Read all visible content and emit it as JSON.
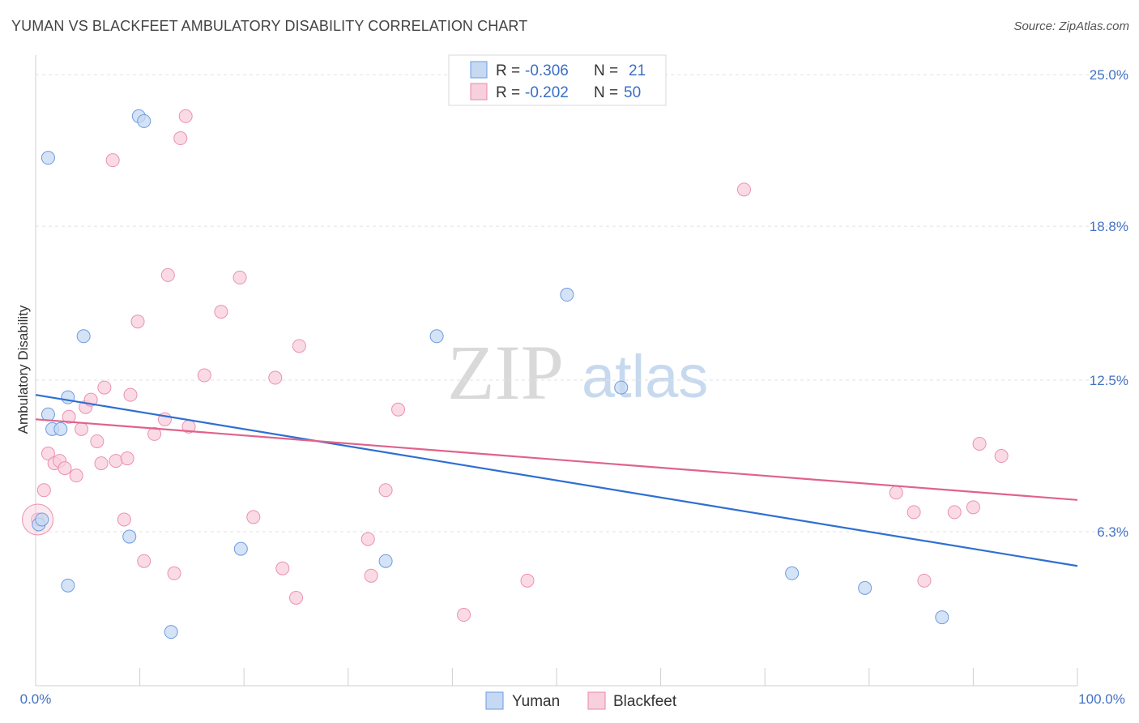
{
  "title": "YUMAN VS BLACKFEET AMBULATORY DISABILITY CORRELATION CHART",
  "source": "Source: ZipAtlas.com",
  "watermark": {
    "zip": "ZIP",
    "atlas": "atlas"
  },
  "colors": {
    "yuman": "#4f86d9",
    "yuman_fill": "#c5d9f3",
    "blackfeet": "#e46b93",
    "blackfeet_fill": "#f8cfdc",
    "tick": "#4472c4",
    "grid": "#e2e2e2"
  },
  "legend": {
    "rows": [
      {
        "r_label": "R = ",
        "r_value": "-0.306",
        "n_label": "N = ",
        "n_value": "21"
      },
      {
        "r_label": "R = ",
        "r_value": "-0.202",
        "n_label": "N = ",
        "n_value": "50"
      }
    ]
  },
  "chart_data": {
    "type": "scatter",
    "title": "YUMAN VS BLACKFEET AMBULATORY DISABILITY CORRELATION CHART",
    "xlabel": "",
    "ylabel": "Ambulatory Disability",
    "xlim": [
      0,
      100
    ],
    "ylim": [
      0,
      25.8
    ],
    "x_tick_labels": [
      "0.0%",
      "100.0%"
    ],
    "y_ticks": [
      6.3,
      12.5,
      18.8,
      25.0
    ],
    "y_tick_labels": [
      "6.3%",
      "12.5%",
      "18.8%",
      "25.0%"
    ],
    "grid": true,
    "legend_position": "bottom-center",
    "series": [
      {
        "name": "Yuman",
        "r": -0.306,
        "n": 21,
        "trend": {
          "x": [
            0,
            100
          ],
          "y": [
            11.9,
            4.9
          ]
        },
        "points": [
          {
            "x": 0.3,
            "y": 6.6
          },
          {
            "x": 1.2,
            "y": 21.6
          },
          {
            "x": 1.2,
            "y": 11.1
          },
          {
            "x": 1.6,
            "y": 10.5
          },
          {
            "x": 2.4,
            "y": 10.5
          },
          {
            "x": 3.1,
            "y": 11.8
          },
          {
            "x": 3.1,
            "y": 4.1
          },
          {
            "x": 4.6,
            "y": 14.3
          },
          {
            "x": 9.0,
            "y": 6.1
          },
          {
            "x": 9.9,
            "y": 23.3
          },
          {
            "x": 10.4,
            "y": 23.1
          },
          {
            "x": 13.0,
            "y": 2.2
          },
          {
            "x": 19.7,
            "y": 5.6
          },
          {
            "x": 33.6,
            "y": 5.1
          },
          {
            "x": 38.5,
            "y": 14.3
          },
          {
            "x": 51.0,
            "y": 16.0
          },
          {
            "x": 56.2,
            "y": 12.2
          },
          {
            "x": 72.6,
            "y": 4.6
          },
          {
            "x": 79.6,
            "y": 4.0
          },
          {
            "x": 87.0,
            "y": 2.8
          },
          {
            "x": 0.6,
            "y": 6.8
          }
        ]
      },
      {
        "name": "Blackfeet",
        "r": -0.202,
        "n": 50,
        "trend": {
          "x": [
            0,
            100
          ],
          "y": [
            10.9,
            7.6
          ]
        },
        "points": [
          {
            "x": 0.2,
            "y": 6.8
          },
          {
            "x": 0.8,
            "y": 8.0
          },
          {
            "x": 1.2,
            "y": 9.5
          },
          {
            "x": 1.8,
            "y": 9.1
          },
          {
            "x": 2.3,
            "y": 9.2
          },
          {
            "x": 2.8,
            "y": 8.9
          },
          {
            "x": 3.2,
            "y": 11.0
          },
          {
            "x": 3.9,
            "y": 8.6
          },
          {
            "x": 4.4,
            "y": 10.5
          },
          {
            "x": 4.8,
            "y": 11.4
          },
          {
            "x": 5.3,
            "y": 11.7
          },
          {
            "x": 5.9,
            "y": 10.0
          },
          {
            "x": 6.3,
            "y": 9.1
          },
          {
            "x": 6.6,
            "y": 12.2
          },
          {
            "x": 7.4,
            "y": 21.5
          },
          {
            "x": 7.7,
            "y": 9.2
          },
          {
            "x": 8.5,
            "y": 6.8
          },
          {
            "x": 8.8,
            "y": 9.3
          },
          {
            "x": 9.1,
            "y": 11.9
          },
          {
            "x": 9.8,
            "y": 14.9
          },
          {
            "x": 10.4,
            "y": 5.1
          },
          {
            "x": 11.4,
            "y": 10.3
          },
          {
            "x": 12.4,
            "y": 10.9
          },
          {
            "x": 12.7,
            "y": 16.8
          },
          {
            "x": 13.3,
            "y": 4.6
          },
          {
            "x": 13.9,
            "y": 22.4
          },
          {
            "x": 14.4,
            "y": 23.3
          },
          {
            "x": 14.7,
            "y": 10.6
          },
          {
            "x": 16.2,
            "y": 12.7
          },
          {
            "x": 17.8,
            "y": 15.3
          },
          {
            "x": 19.6,
            "y": 16.7
          },
          {
            "x": 20.9,
            "y": 6.9
          },
          {
            "x": 23.0,
            "y": 12.6
          },
          {
            "x": 23.7,
            "y": 4.8
          },
          {
            "x": 25.0,
            "y": 3.6
          },
          {
            "x": 25.3,
            "y": 13.9
          },
          {
            "x": 31.9,
            "y": 6.0
          },
          {
            "x": 32.2,
            "y": 4.5
          },
          {
            "x": 33.6,
            "y": 8.0
          },
          {
            "x": 34.8,
            "y": 11.3
          },
          {
            "x": 41.1,
            "y": 2.9
          },
          {
            "x": 47.2,
            "y": 4.3
          },
          {
            "x": 68.0,
            "y": 20.3
          },
          {
            "x": 82.6,
            "y": 7.9
          },
          {
            "x": 84.3,
            "y": 7.1
          },
          {
            "x": 85.3,
            "y": 4.3
          },
          {
            "x": 88.2,
            "y": 7.1
          },
          {
            "x": 90.0,
            "y": 7.3
          },
          {
            "x": 90.6,
            "y": 9.9
          },
          {
            "x": 92.7,
            "y": 9.4
          }
        ]
      }
    ]
  }
}
